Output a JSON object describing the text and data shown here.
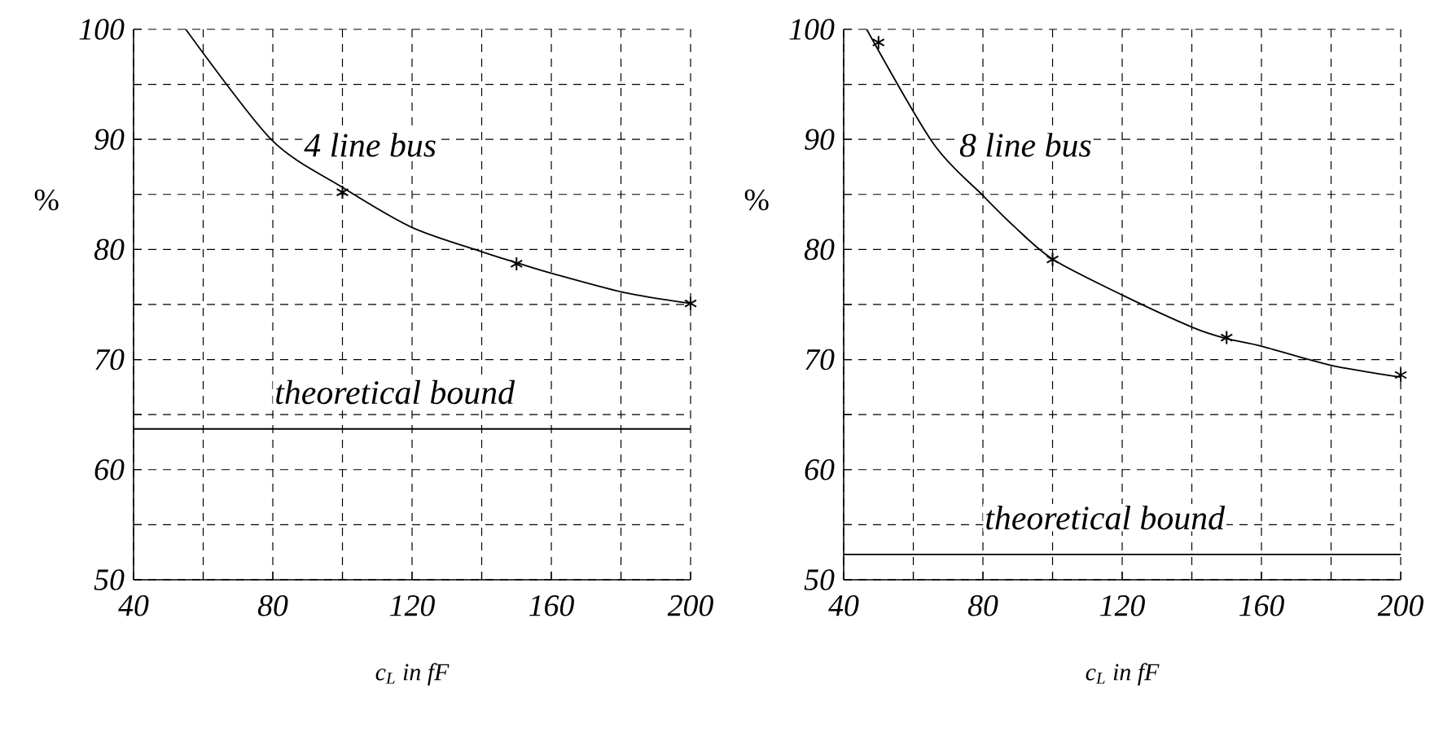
{
  "chart_data": [
    {
      "type": "line",
      "xlabel": "c$_{L}$ in fF",
      "ylabel": "%",
      "series": [
        {
          "name": "4 line bus",
          "color": "#000000",
          "marker": "none",
          "x": [
            55,
            79.5,
            99.7,
            120,
            140,
            151,
            160.5,
            180.8,
            200
          ],
          "values": [
            100,
            90,
            85.7,
            82,
            79.8,
            78.7,
            77.8,
            76.1,
            75.1
          ]
        },
        {
          "type": "scatter",
          "color": "#000000",
          "marker": "cross",
          "x": [
            100,
            150,
            200
          ],
          "values": [
            85.2,
            78.7,
            75.1
          ]
        }
      ],
      "ref_lines": [
        {
          "axis": "y",
          "value": 63.7,
          "label": "theoretical bound",
          "color": "#000000",
          "line_style": "solid"
        }
      ],
      "xlim": [
        40,
        200
      ],
      "ylim": [
        50,
        100
      ],
      "xticks": [
        40,
        {
          "value": 60,
          "label": null
        },
        80,
        {
          "value": 100,
          "label": null
        },
        120,
        {
          "value": 140,
          "label": null
        },
        160,
        {
          "value": 180,
          "label": null
        },
        200
      ],
      "yticks": [
        50,
        {
          "value": 55,
          "label": null
        },
        60,
        {
          "value": 65,
          "label": null
        },
        70,
        {
          "value": 75,
          "label": null
        },
        80,
        {
          "value": 85,
          "label": null
        },
        90,
        {
          "value": 95,
          "label": null
        },
        100
      ],
      "grid": true
    },
    {
      "type": "line",
      "xlabel": "c$_{L}$ in fF",
      "ylabel": "%",
      "series": [
        {
          "name": "8 line bus",
          "color": "#000000",
          "marker": "none",
          "x": [
            46.6,
            65.8,
            80,
            88.6,
            100.1,
            120.4,
            140.4,
            150,
            160.2,
            179.7,
            200
          ],
          "values": [
            100,
            89.6,
            84.9,
            82.2,
            79.1,
            75.8,
            72.9,
            71.9,
            71.2,
            69.5,
            68.4
          ]
        },
        {
          "type": "scatter",
          "color": "#000000",
          "marker": "cross",
          "x": [
            50,
            100,
            150,
            200
          ],
          "values": [
            98.8,
            79.1,
            72.0,
            68.6
          ]
        }
      ],
      "ref_lines": [
        {
          "axis": "y",
          "value": 52.3,
          "label": "theoretical bound",
          "color": "#000000",
          "line_style": "solid"
        }
      ],
      "xlim": [
        40,
        200
      ],
      "ylim": [
        50,
        100
      ],
      "xticks": [
        40,
        {
          "value": 60,
          "label": null
        },
        80,
        {
          "value": 100,
          "label": null
        },
        120,
        {
          "value": 140,
          "label": null
        },
        160,
        {
          "value": 180,
          "label": null
        },
        200
      ],
      "yticks": [
        50,
        {
          "value": 55,
          "label": null
        },
        60,
        {
          "value": 65,
          "label": null
        },
        70,
        {
          "value": 75,
          "label": null
        },
        80,
        {
          "value": 85,
          "label": null
        },
        90,
        {
          "value": 95,
          "label": null
        },
        100
      ],
      "grid": true
    }
  ]
}
